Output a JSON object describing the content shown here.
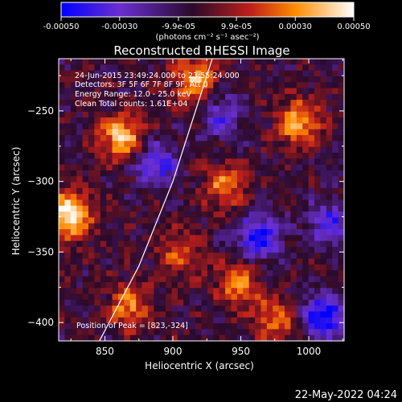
{
  "chart_data": {
    "type": "heatmap",
    "title": "Reconstructed RHESSI Image",
    "xlabel": "Heliocentric X (arcsec)",
    "ylabel": "Heliocentric Y (arcsec)",
    "xlim": [
      816,
      1026
    ],
    "ylim": [
      -413,
      -213
    ],
    "x_ticks": [
      850,
      900,
      950,
      1000
    ],
    "y_ticks": [
      -250,
      -300,
      -350,
      -400
    ],
    "colorbar": {
      "range": [
        -0.0005,
        0.0005
      ],
      "tick_values": [
        -0.0005,
        -0.0003,
        -9.9e-05,
        9.9e-05,
        0.0003,
        0.0005
      ],
      "tick_labels": [
        "-0.00050",
        "-0.00030",
        "-9.9e-05",
        "9.9e-05",
        "0.00030",
        "0.00050"
      ],
      "unit_label": "(photons cm⁻² s⁻¹ asec⁻²)",
      "colormap": [
        "#0000ff",
        "#6a2fd0",
        "#2a0a2a",
        "#c0201a",
        "#ff8c00",
        "#ffffff"
      ]
    },
    "info_lines": [
      "24-Jun-2015 23:49:24.000 to 23:55:24.000",
      "Detectors: 3F 5F 6F 7F 8F 9F, Att 0",
      "Energy Range: 12.0 - 25.0 keV",
      "Clean    Total counts: 1.61E+04"
    ],
    "peak_label": "Position of Peak = [823,-324]",
    "peak": [
      823,
      -324
    ],
    "limb": [
      [
        846,
        -413
      ],
      [
        875,
        -360
      ],
      [
        900,
        -300
      ],
      [
        929,
        -213
      ]
    ],
    "hot_regions": [
      {
        "x": 823,
        "y": -324,
        "level": 1.0
      },
      {
        "x": 862,
        "y": -268,
        "level": 0.8
      },
      {
        "x": 916,
        "y": -228,
        "level": 0.7
      },
      {
        "x": 993,
        "y": -258,
        "level": 0.75
      },
      {
        "x": 938,
        "y": -303,
        "level": 0.55
      },
      {
        "x": 948,
        "y": -372,
        "level": 0.6
      },
      {
        "x": 976,
        "y": -398,
        "level": 0.55
      },
      {
        "x": 868,
        "y": -388,
        "level": 0.6
      },
      {
        "x": 905,
        "y": -350,
        "level": 0.45
      }
    ],
    "cold_regions": [
      {
        "x": 963,
        "y": -340,
        "level": -0.8
      },
      {
        "x": 1011,
        "y": -395,
        "level": -0.85
      },
      {
        "x": 888,
        "y": -288,
        "level": -0.6
      },
      {
        "x": 936,
        "y": -253,
        "level": -0.5
      },
      {
        "x": 1015,
        "y": -330,
        "level": -0.55
      }
    ]
  },
  "timestamp": "22-May-2022 04:24"
}
